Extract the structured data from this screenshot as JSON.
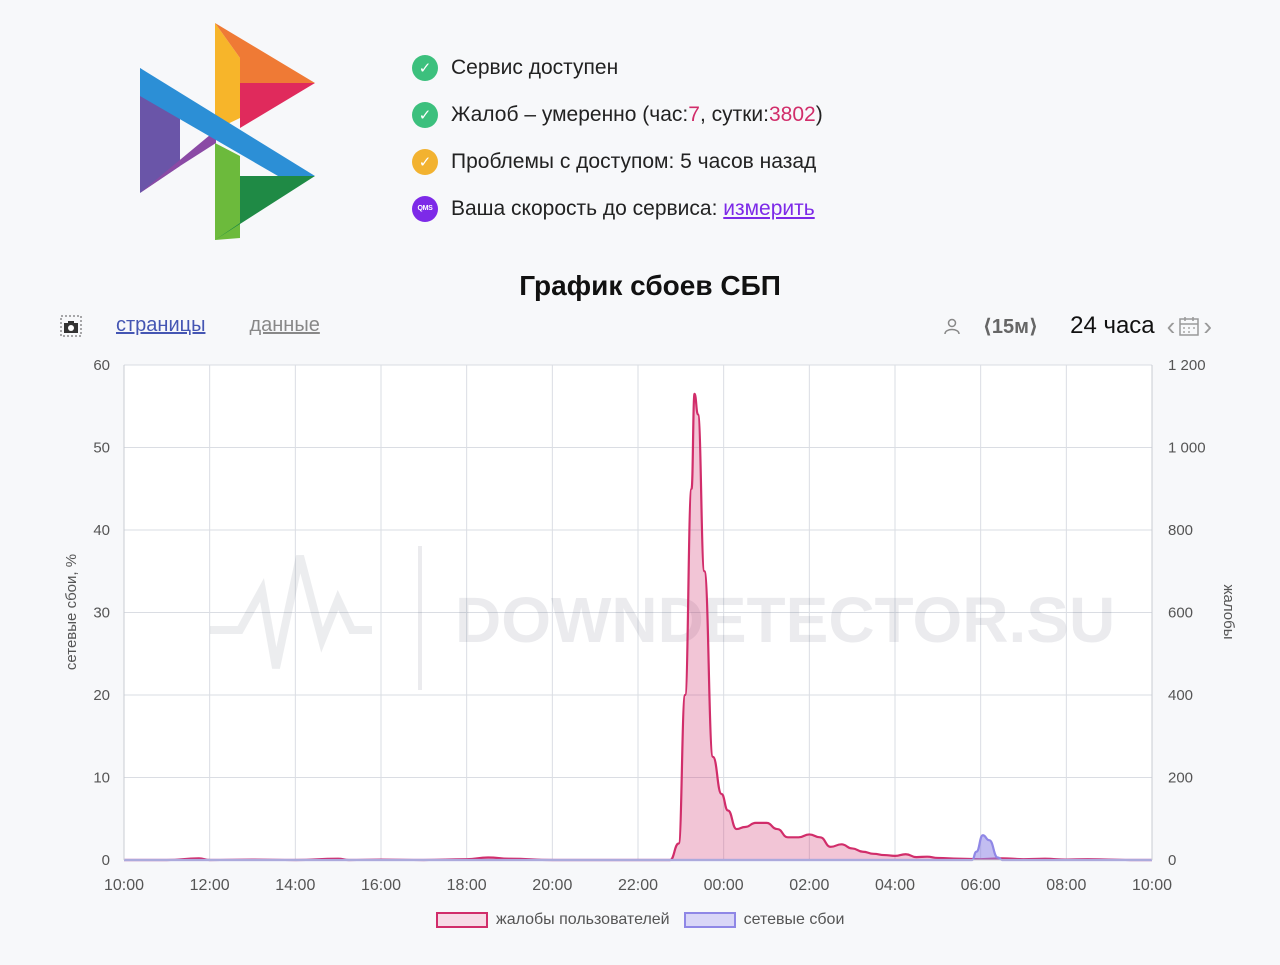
{
  "status": {
    "items": [
      {
        "icon": "check-icon",
        "text": "Сервис доступен"
      },
      {
        "icon": "check-icon",
        "prefix": "Жалоб – умеренно (час: ",
        "hour_count": "7",
        "mid": ", сутки: ",
        "day_count": "3802",
        "suffix": ")"
      },
      {
        "icon": "check-warning-icon",
        "text": "Проблемы с доступом: 5 часов назад"
      },
      {
        "icon": "qms-icon",
        "icon_text": "QMS",
        "text": "Ваша скорость до сервиса: ",
        "link": "измерить"
      }
    ]
  },
  "chart_title": "График сбоев СБП",
  "toolbar": {
    "tab_pages": "страницы",
    "tab_data": "данные",
    "interval": "⟨15м⟩",
    "range": "24 часа",
    "prev": "‹",
    "next": "›"
  },
  "colors": {
    "complaints": "#d12d6a",
    "network": "#8f87e6",
    "accent": "#7d2ae8"
  },
  "watermark": "DOWNDETECTOR.SU",
  "chart_data": {
    "type": "area",
    "ylabel_left": "сетевые сбои, %",
    "ylabel_right": "жалобы",
    "y_left": {
      "min": 0,
      "max": 60,
      "ticks": [
        0,
        10,
        20,
        30,
        40,
        50,
        60
      ],
      "tick_labels": [
        "0",
        "10",
        "20",
        "30",
        "40",
        "50",
        "60"
      ]
    },
    "y_right": {
      "min": 0,
      "max": 1200,
      "ticks": [
        0,
        200,
        400,
        600,
        800,
        1000,
        1200
      ],
      "tick_labels": [
        "0",
        "200",
        "400",
        "600",
        "800",
        "1 000",
        "1 200"
      ]
    },
    "x_ticks": [
      "10:00",
      "12:00",
      "14:00",
      "16:00",
      "18:00",
      "20:00",
      "22:00",
      "00:00",
      "02:00",
      "04:00",
      "06:00",
      "08:00",
      "10:00"
    ],
    "x_range_hours": [
      0,
      24
    ],
    "grid": true,
    "legend_position": "bottom",
    "series": [
      {
        "name": "жалобы пользователей",
        "axis": "right",
        "color": "#d12d6a",
        "points": [
          [
            0,
            0
          ],
          [
            1,
            0
          ],
          [
            1.75,
            4
          ],
          [
            2,
            0
          ],
          [
            3,
            1
          ],
          [
            4,
            0
          ],
          [
            5,
            3
          ],
          [
            5.25,
            0
          ],
          [
            6,
            1
          ],
          [
            7,
            0
          ],
          [
            8,
            2
          ],
          [
            8.5,
            6
          ],
          [
            9,
            3
          ],
          [
            10,
            0
          ],
          [
            11,
            0
          ],
          [
            12,
            0
          ],
          [
            12.75,
            0
          ],
          [
            12.95,
            40
          ],
          [
            13.1,
            400
          ],
          [
            13.25,
            900
          ],
          [
            13.32,
            1130
          ],
          [
            13.4,
            1080
          ],
          [
            13.55,
            700
          ],
          [
            13.75,
            250
          ],
          [
            13.95,
            160
          ],
          [
            14.1,
            120
          ],
          [
            14.3,
            75
          ],
          [
            14.5,
            80
          ],
          [
            14.75,
            90
          ],
          [
            15,
            90
          ],
          [
            15.25,
            75
          ],
          [
            15.5,
            55
          ],
          [
            15.75,
            55
          ],
          [
            16,
            62
          ],
          [
            16.25,
            55
          ],
          [
            16.5,
            32
          ],
          [
            16.75,
            38
          ],
          [
            17,
            28
          ],
          [
            17.25,
            20
          ],
          [
            17.5,
            15
          ],
          [
            17.75,
            12
          ],
          [
            18,
            10
          ],
          [
            18.25,
            14
          ],
          [
            18.5,
            7
          ],
          [
            18.75,
            8
          ],
          [
            19,
            5
          ],
          [
            19.5,
            3
          ],
          [
            20,
            2
          ],
          [
            20.5,
            4
          ],
          [
            21,
            2
          ],
          [
            21.5,
            3
          ],
          [
            22,
            1
          ],
          [
            22.5,
            2
          ],
          [
            23,
            1
          ],
          [
            23.5,
            0
          ],
          [
            24,
            0
          ]
        ]
      },
      {
        "name": "сетевые сбои",
        "axis": "left",
        "color": "#8f87e6",
        "points": [
          [
            0,
            0
          ],
          [
            19.8,
            0
          ],
          [
            19.9,
            1
          ],
          [
            20.05,
            3
          ],
          [
            20.2,
            2.4
          ],
          [
            20.4,
            0.3
          ],
          [
            20.5,
            0
          ],
          [
            24,
            0
          ]
        ]
      }
    ]
  }
}
